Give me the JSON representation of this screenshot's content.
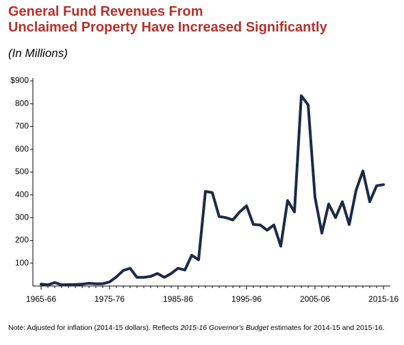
{
  "chart_data": {
    "type": "line",
    "title": [
      "General Fund Revenues From",
      "Unclaimed Property Have Increased Significantly"
    ],
    "subtitle": "(In Millions)",
    "note": [
      "Note: Adjusted for inflation (2014-15 dollars). Reflects ",
      "2015-16 Governor's Budget",
      " estimates for 2014-15 and 2015-16."
    ],
    "categories": [
      "1965-66",
      null,
      null,
      null,
      null,
      null,
      null,
      null,
      null,
      null,
      "1975-76",
      null,
      null,
      null,
      null,
      null,
      null,
      null,
      null,
      null,
      "1985-86",
      null,
      null,
      null,
      null,
      null,
      null,
      null,
      null,
      null,
      "1995-96",
      null,
      null,
      null,
      null,
      null,
      null,
      null,
      null,
      null,
      "2005-06",
      null,
      null,
      null,
      null,
      null,
      null,
      null,
      null,
      null,
      "2015-16"
    ],
    "values": [
      8,
      5,
      15,
      5,
      6,
      6,
      8,
      12,
      10,
      10,
      18,
      40,
      68,
      78,
      38,
      38,
      42,
      55,
      38,
      55,
      78,
      70,
      135,
      115,
      415,
      410,
      305,
      300,
      290,
      325,
      352,
      270,
      268,
      245,
      268,
      175,
      375,
      325,
      835,
      795,
      390,
      232,
      360,
      300,
      370,
      270,
      420,
      505,
      370,
      440,
      445
    ],
    "color": "#1c2a46",
    "ylim": [
      0,
      900
    ],
    "yticks": [
      100,
      200,
      300,
      400,
      500,
      600,
      700,
      800,
      {
        "value": 900,
        "label": "$900"
      }
    ]
  }
}
